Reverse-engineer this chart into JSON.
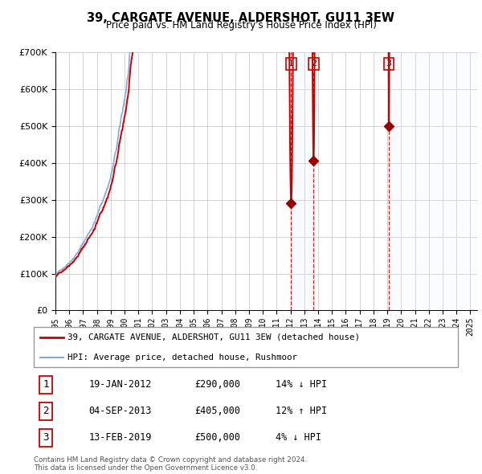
{
  "title": "39, CARGATE AVENUE, ALDERSHOT, GU11 3EW",
  "subtitle": "Price paid vs. HM Land Registry's House Price Index (HPI)",
  "background_color": "#ffffff",
  "plot_bg_color": "#ffffff",
  "grid_color": "#cccccc",
  "hpi_line_color": "#7faadd",
  "price_line_color": "#cc0000",
  "sale_marker_color": "#990000",
  "ylim": [
    0,
    700000
  ],
  "yticks": [
    0,
    100000,
    200000,
    300000,
    400000,
    500000,
    600000,
    700000
  ],
  "ytick_labels": [
    "£0",
    "£100K",
    "£200K",
    "£300K",
    "£400K",
    "£500K",
    "£600K",
    "£700K"
  ],
  "xlim_start": 1995.0,
  "xlim_end": 2025.5,
  "xtick_years": [
    1995,
    1996,
    1997,
    1998,
    1999,
    2000,
    2001,
    2002,
    2003,
    2004,
    2005,
    2006,
    2007,
    2008,
    2009,
    2010,
    2011,
    2012,
    2013,
    2014,
    2015,
    2016,
    2017,
    2018,
    2019,
    2020,
    2021,
    2022,
    2023,
    2024,
    2025
  ],
  "sales": [
    {
      "date": 2012.05,
      "price": 290000,
      "label": "1"
    },
    {
      "date": 2013.67,
      "price": 405000,
      "label": "2"
    },
    {
      "date": 2019.12,
      "price": 500000,
      "label": "3"
    }
  ],
  "legend_line1": "39, CARGATE AVENUE, ALDERSHOT, GU11 3EW (detached house)",
  "legend_line2": "HPI: Average price, detached house, Rushmoor",
  "table_rows": [
    {
      "num": "1",
      "date": "19-JAN-2012",
      "price": "£290,000",
      "hpi": "14% ↓ HPI"
    },
    {
      "num": "2",
      "date": "04-SEP-2013",
      "price": "£405,000",
      "hpi": "12% ↑ HPI"
    },
    {
      "num": "3",
      "date": "13-FEB-2019",
      "price": "£500,000",
      "hpi": "4% ↓ HPI"
    }
  ],
  "footer": "Contains HM Land Registry data © Crown copyright and database right 2024.\nThis data is licensed under the Open Government Licence v3.0.",
  "vline_color": "#cc0000",
  "shade_color": "#ddeeff"
}
